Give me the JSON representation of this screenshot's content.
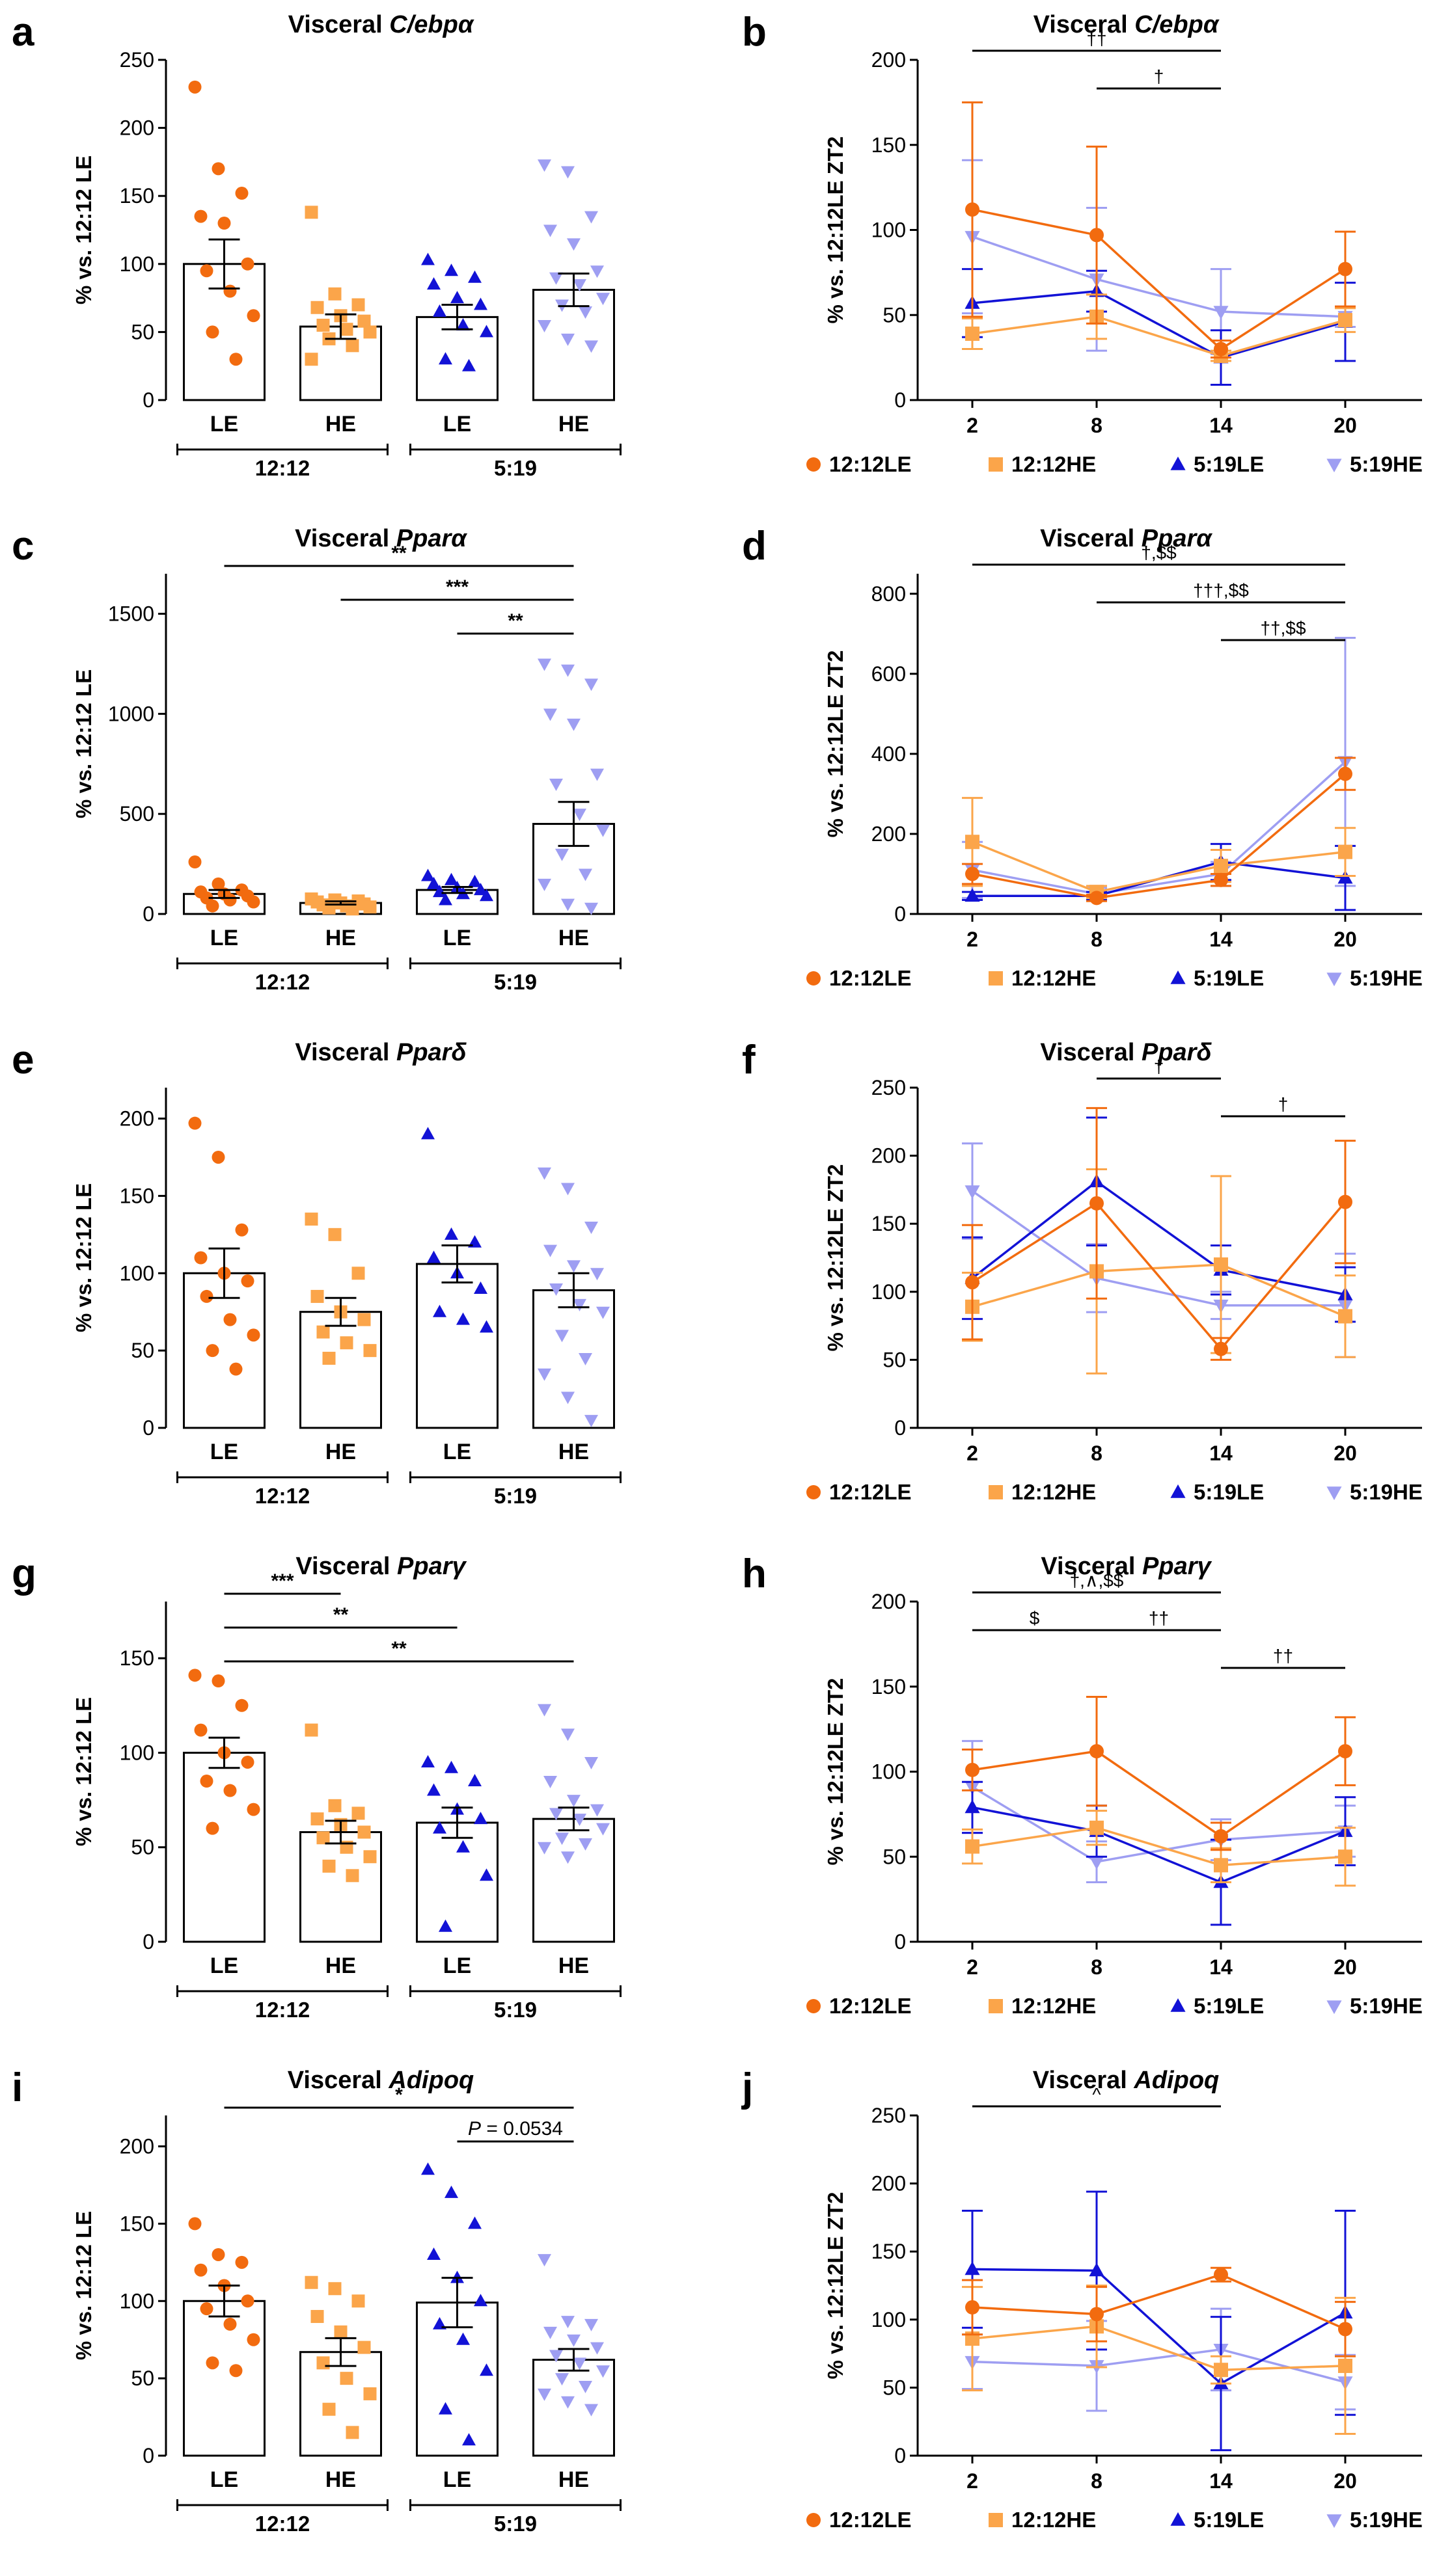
{
  "colors": {
    "s1": "#f26b0f",
    "s2": "#fba54a",
    "s3": "#1212d6",
    "s4": "#9e9ef2",
    "axis": "#000000"
  },
  "legend_labels": [
    "12:12LE",
    "12:12HE",
    "5:19LE",
    "5:19HE"
  ],
  "bar_categories": [
    "LE",
    "HE",
    "LE",
    "HE"
  ],
  "group_labels": [
    "12:12",
    "5:19"
  ],
  "chart_data": [
    {
      "panel": "a",
      "type": "bar",
      "title_prefix": "Visceral ",
      "title_gene": "C/ebpα",
      "ylabel": "% vs. 12:12 LE",
      "ylim": [
        0,
        250
      ],
      "yticks": [
        0,
        50,
        100,
        150,
        200,
        250
      ],
      "means": [
        100,
        54,
        61,
        81
      ],
      "sems": [
        18,
        9,
        9,
        12
      ],
      "points": [
        [
          230,
          170,
          152,
          135,
          130,
          100,
          95,
          80,
          62,
          50,
          30
        ],
        [
          138,
          78,
          70,
          68,
          62,
          58,
          55,
          52,
          50,
          45,
          40,
          30
        ],
        [
          103,
          95,
          90,
          85,
          75,
          70,
          65,
          55,
          50,
          30,
          25
        ],
        [
          173,
          168,
          135,
          125,
          115,
          95,
          90,
          85,
          75,
          70,
          65,
          55,
          45,
          40
        ]
      ],
      "significance": []
    },
    {
      "panel": "b",
      "type": "line",
      "title_prefix": "Visceral ",
      "title_gene": "C/ebpα",
      "ylabel": "% vs. 12:12LE ZT2",
      "ylim": [
        0,
        200
      ],
      "yticks": [
        0,
        50,
        100,
        150,
        200
      ],
      "x": [
        2,
        8,
        14,
        20
      ],
      "series": [
        {
          "name": "12:12LE",
          "values": [
            112,
            97,
            30,
            77
          ],
          "errors": [
            63,
            52,
            5,
            22
          ]
        },
        {
          "name": "12:12HE",
          "values": [
            39,
            49,
            26,
            47
          ],
          "errors": [
            9,
            13,
            3,
            7
          ]
        },
        {
          "name": "5:19LE",
          "values": [
            57,
            64,
            25,
            46
          ],
          "errors": [
            20,
            12,
            16,
            23
          ]
        },
        {
          "name": "5:19HE",
          "values": [
            96,
            71,
            52,
            49
          ],
          "errors": [
            45,
            42,
            25,
            6
          ]
        }
      ],
      "significance": [
        {
          "from": 2,
          "to": 14,
          "label": "††",
          "level": 0
        },
        {
          "from": 8,
          "to": 14,
          "label": "†",
          "level": 1
        }
      ]
    },
    {
      "panel": "c",
      "type": "bar",
      "title_prefix": "Visceral ",
      "title_gene": "Pparα",
      "ylabel": "% vs. 12:12 LE",
      "ylim": [
        0,
        1700
      ],
      "yticks": [
        0,
        500,
        1000,
        1500
      ],
      "means": [
        100,
        55,
        120,
        450
      ],
      "sems": [
        20,
        8,
        15,
        110
      ],
      "points": [
        [
          260,
          150,
          120,
          110,
          100,
          90,
          80,
          70,
          60,
          40
        ],
        [
          75,
          70,
          65,
          60,
          55,
          50,
          45,
          40,
          35,
          30,
          25
        ],
        [
          190,
          170,
          160,
          150,
          130,
          120,
          110,
          100,
          90,
          70
        ],
        [
          1250,
          1220,
          1150,
          1000,
          950,
          700,
          650,
          500,
          420,
          300,
          200,
          150,
          50,
          30
        ]
      ],
      "significance": [
        {
          "from": 0,
          "to": 3,
          "label": "**",
          "level": 0
        },
        {
          "from": 1,
          "to": 3,
          "label": "***",
          "level": 1
        },
        {
          "from": 2,
          "to": 3,
          "label": "**",
          "level": 2
        }
      ]
    },
    {
      "panel": "d",
      "type": "line",
      "title_prefix": "Visceral ",
      "title_gene": "Pparα",
      "ylabel": "% vs. 12:12LE ZT2",
      "ylim": [
        0,
        850
      ],
      "yticks": [
        0,
        200,
        400,
        600,
        800
      ],
      "x": [
        2,
        8,
        14,
        20
      ],
      "series": [
        {
          "name": "12:12LE",
          "values": [
            100,
            40,
            85,
            350
          ],
          "errors": [
            25,
            8,
            15,
            40
          ]
        },
        {
          "name": "12:12HE",
          "values": [
            180,
            55,
            120,
            155
          ],
          "errors": [
            110,
            15,
            40,
            60
          ]
        },
        {
          "name": "5:19LE",
          "values": [
            45,
            45,
            130,
            90
          ],
          "errors": [
            10,
            10,
            45,
            80
          ]
        },
        {
          "name": "5:19HE",
          "values": [
            110,
            50,
            100,
            380
          ],
          "errors": [
            70,
            15,
            30,
            310
          ]
        }
      ],
      "significance": [
        {
          "from": 2,
          "to": 20,
          "label": "†,$$",
          "level": 0
        },
        {
          "from": 8,
          "to": 20,
          "label": "†††,$$",
          "level": 1
        },
        {
          "from": 14,
          "to": 20,
          "label": "††,$$",
          "level": 2
        }
      ]
    },
    {
      "panel": "e",
      "type": "bar",
      "title_prefix": "Visceral ",
      "title_gene": "Pparδ",
      "ylabel": "% vs. 12:12 LE",
      "ylim": [
        0,
        220
      ],
      "yticks": [
        0,
        50,
        100,
        150,
        200
      ],
      "means": [
        100,
        75,
        106,
        89
      ],
      "sems": [
        16,
        9,
        12,
        11
      ],
      "points": [
        [
          197,
          175,
          128,
          110,
          100,
          95,
          85,
          70,
          60,
          50,
          38
        ],
        [
          135,
          125,
          100,
          85,
          75,
          70,
          62,
          55,
          50,
          45
        ],
        [
          190,
          125,
          120,
          110,
          100,
          90,
          75,
          70,
          65
        ],
        [
          165,
          155,
          130,
          115,
          105,
          100,
          90,
          80,
          75,
          60,
          45,
          35,
          20,
          5
        ]
      ],
      "significance": []
    },
    {
      "panel": "f",
      "type": "line",
      "title_prefix": "Visceral ",
      "title_gene": "Pparδ",
      "ylabel": "% vs. 12:12LE ZT2",
      "ylim": [
        0,
        250
      ],
      "yticks": [
        0,
        50,
        100,
        150,
        200,
        250
      ],
      "x": [
        2,
        8,
        14,
        20
      ],
      "series": [
        {
          "name": "12:12LE",
          "values": [
            107,
            165,
            58,
            166
          ],
          "errors": [
            42,
            70,
            8,
            45
          ]
        },
        {
          "name": "12:12HE",
          "values": [
            89,
            115,
            120,
            82
          ],
          "errors": [
            25,
            75,
            65,
            30
          ]
        },
        {
          "name": "5:19LE",
          "values": [
            110,
            181,
            116,
            98
          ],
          "errors": [
            30,
            47,
            18,
            20
          ]
        },
        {
          "name": "5:19HE",
          "values": [
            174,
            110,
            90,
            90
          ],
          "errors": [
            35,
            25,
            10,
            38
          ]
        }
      ],
      "significance": [
        {
          "from": 8,
          "to": 14,
          "label": "†",
          "level": 0
        },
        {
          "from": 14,
          "to": 20,
          "label": "†",
          "level": 1
        }
      ]
    },
    {
      "panel": "g",
      "type": "bar",
      "title_prefix": "Visceral ",
      "title_gene": "Pparγ",
      "ylabel": "% vs. 12:12 LE",
      "ylim": [
        0,
        180
      ],
      "yticks": [
        0,
        50,
        100,
        150
      ],
      "means": [
        100,
        58,
        63,
        65
      ],
      "sems": [
        8,
        6,
        8,
        6
      ],
      "points": [
        [
          141,
          138,
          125,
          112,
          100,
          95,
          85,
          80,
          70,
          60
        ],
        [
          112,
          72,
          68,
          65,
          62,
          58,
          55,
          50,
          45,
          40,
          35
        ],
        [
          95,
          92,
          85,
          80,
          70,
          65,
          60,
          50,
          35,
          8
        ],
        [
          123,
          110,
          95,
          85,
          75,
          70,
          68,
          65,
          60,
          55,
          52,
          50,
          45
        ]
      ],
      "significance": [
        {
          "from": 0,
          "to": 1,
          "label": "***",
          "level": 0
        },
        {
          "from": 0,
          "to": 2,
          "label": "**",
          "level": 1
        },
        {
          "from": 0,
          "to": 3,
          "label": "**",
          "level": 2
        }
      ]
    },
    {
      "panel": "h",
      "type": "line",
      "title_prefix": "Visceral ",
      "title_gene": "Pparγ",
      "ylabel": "% vs. 12:12LE ZT2",
      "ylim": [
        0,
        200
      ],
      "yticks": [
        0,
        50,
        100,
        150,
        200
      ],
      "x": [
        2,
        8,
        14,
        20
      ],
      "series": [
        {
          "name": "12:12LE",
          "values": [
            101,
            112,
            62,
            112
          ],
          "errors": [
            12,
            32,
            8,
            20
          ]
        },
        {
          "name": "12:12HE",
          "values": [
            56,
            67,
            45,
            50
          ],
          "errors": [
            10,
            10,
            10,
            17
          ]
        },
        {
          "name": "5:19LE",
          "values": [
            79,
            65,
            35,
            65
          ],
          "errors": [
            15,
            15,
            25,
            20
          ]
        },
        {
          "name": "5:19HE",
          "values": [
            91,
            47,
            60,
            65
          ],
          "errors": [
            27,
            12,
            12,
            15
          ]
        }
      ],
      "significance": [
        {
          "from": 2,
          "to": 14,
          "label": "†,∧,$$",
          "level": 0
        },
        {
          "from": 2,
          "to": 8,
          "label": "$",
          "level": 1
        },
        {
          "from": 8,
          "to": 14,
          "label": "††",
          "level": 1
        },
        {
          "from": 14,
          "to": 20,
          "label": "††",
          "level": 2
        }
      ]
    },
    {
      "panel": "i",
      "type": "bar",
      "title_prefix": "Visceral ",
      "title_gene": "Adipoq",
      "ylabel": "% vs. 12:12 LE",
      "ylim": [
        0,
        220
      ],
      "yticks": [
        0,
        50,
        100,
        150,
        200
      ],
      "means": [
        100,
        67,
        99,
        62
      ],
      "sems": [
        10,
        9,
        16,
        7
      ],
      "points": [
        [
          150,
          130,
          125,
          120,
          110,
          100,
          95,
          85,
          75,
          60,
          55
        ],
        [
          112,
          108,
          100,
          90,
          80,
          70,
          60,
          50,
          40,
          30,
          15
        ],
        [
          185,
          170,
          150,
          130,
          115,
          100,
          85,
          75,
          55,
          30,
          10
        ],
        [
          127,
          87,
          85,
          80,
          75,
          70,
          65,
          60,
          55,
          50,
          45,
          40,
          35,
          30
        ]
      ],
      "significance": [
        {
          "from": 0,
          "to": 3,
          "label": "*",
          "level": 0
        },
        {
          "from": 2,
          "to": 3,
          "label": "= 0.0534",
          "p_label": "P",
          "level": 1
        }
      ]
    },
    {
      "panel": "j",
      "type": "line",
      "title_prefix": "Visceral ",
      "title_gene": "Adipoq",
      "ylabel": "% vs. 12:12LE ZT2",
      "ylim": [
        0,
        250
      ],
      "yticks": [
        0,
        50,
        100,
        150,
        200,
        250
      ],
      "x": [
        2,
        8,
        14,
        20
      ],
      "series": [
        {
          "name": "12:12LE",
          "values": [
            109,
            104,
            133,
            93
          ],
          "errors": [
            20,
            20,
            5,
            20
          ]
        },
        {
          "name": "12:12HE",
          "values": [
            86,
            95,
            63,
            66
          ],
          "errors": [
            38,
            30,
            10,
            50
          ]
        },
        {
          "name": "5:19LE",
          "values": [
            137,
            136,
            53,
            105
          ],
          "errors": [
            43,
            58,
            49,
            75
          ]
        },
        {
          "name": "5:19HE",
          "values": [
            69,
            66,
            78,
            54
          ],
          "errors": [
            20,
            33,
            30,
            20
          ]
        }
      ],
      "significance": [
        {
          "from": 2,
          "to": 14,
          "label": "^",
          "level": 0
        }
      ]
    }
  ]
}
